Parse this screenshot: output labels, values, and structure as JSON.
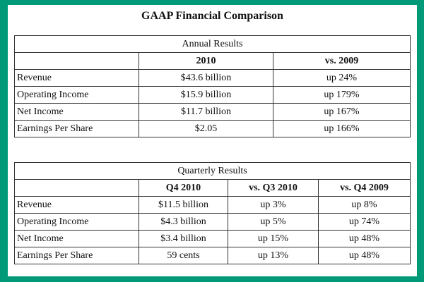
{
  "title": "GAAP Financial Comparison",
  "annual": {
    "caption": "Annual Results",
    "headers": [
      "",
      "2010",
      "vs. 2009"
    ],
    "rows": [
      [
        "Revenue",
        "$43.6 billion",
        "up 24%"
      ],
      [
        "Operating Income",
        "$15.9 billion",
        "up 179%"
      ],
      [
        "Net Income",
        "$11.7 billion",
        "up 167%"
      ],
      [
        "Earnings Per Share",
        "$2.05",
        "up 166%"
      ]
    ]
  },
  "quarterly": {
    "caption": "Quarterly Results",
    "headers": [
      "",
      "Q4 2010",
      "vs. Q3 2010",
      "vs. Q4 2009"
    ],
    "rows": [
      [
        "Revenue",
        "$11.5 billion",
        "up 3%",
        "up 8%"
      ],
      [
        "Operating Income",
        "$4.3 billion",
        "up 5%",
        "up 74%"
      ],
      [
        "Net Income",
        "$3.4 billion",
        "up 15%",
        "up 48%"
      ],
      [
        "Earnings Per Share",
        "59 cents",
        "up 13%",
        "up 48%"
      ]
    ]
  }
}
